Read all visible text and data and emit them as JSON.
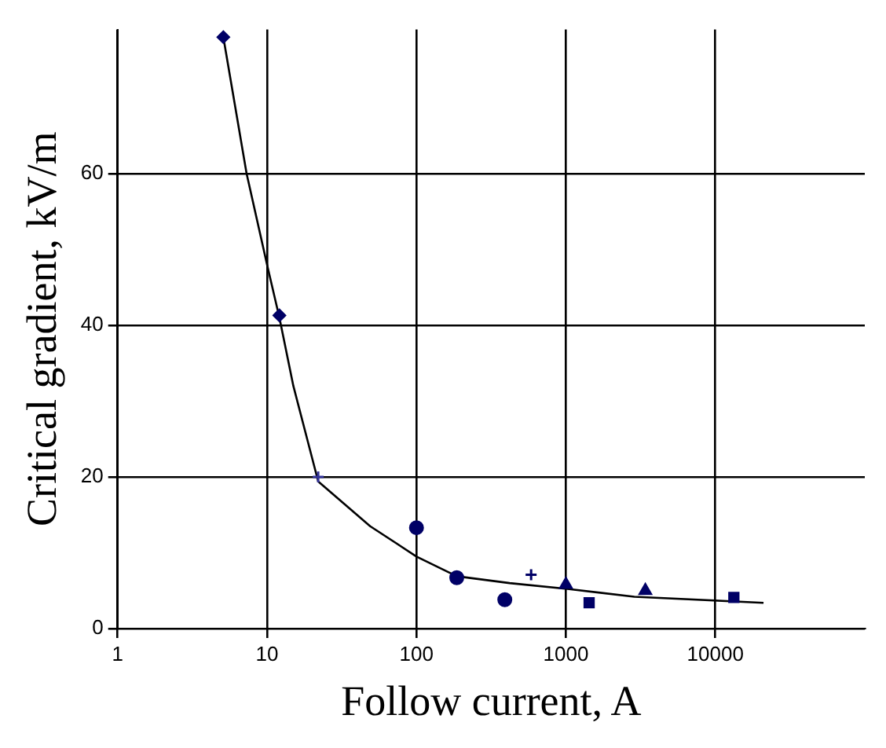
{
  "chart_data": {
    "type": "scatter",
    "xlabel": "Follow current, A",
    "ylabel": "Critical gradient, kV/m",
    "log": "x",
    "xlim": [
      1,
      100000
    ],
    "xticks": [
      1,
      10,
      100,
      1000,
      10000
    ],
    "ylim": [
      0,
      79
    ],
    "yticks": [
      0,
      20,
      40,
      60
    ],
    "grid": true,
    "legend": false,
    "series": [
      {
        "marker": "diamond",
        "color": "#000066",
        "x": [
          5.1,
          12.1
        ],
        "values": [
          78,
          41.3
        ]
      },
      {
        "marker": "cross",
        "color": "#333399",
        "x": [
          22
        ],
        "values": [
          20
        ]
      },
      {
        "marker": "circle",
        "color": "#000066",
        "x": [
          100,
          186,
          390
        ],
        "values": [
          13.3,
          6.7,
          3.8
        ]
      },
      {
        "marker": "cross",
        "color": "#000066",
        "x": [
          585
        ],
        "values": [
          7.1
        ]
      },
      {
        "marker": "triangle",
        "color": "#000066",
        "x": [
          1000,
          3400
        ],
        "values": [
          5.8,
          5.0
        ]
      },
      {
        "marker": "square",
        "color": "#000066",
        "x": [
          1430
        ],
        "values": [
          3.4
        ]
      },
      {
        "marker": "square",
        "color": "#000066",
        "x": [
          13300
        ],
        "values": [
          4.1
        ]
      },
      {
        "type": "line",
        "marker": "none",
        "color": "#000000",
        "x": [
          5.1,
          7.3,
          10,
          12.1,
          15,
          22,
          49,
          100,
          186,
          420,
          1050,
          2870,
          21000
        ],
        "values": [
          78,
          60,
          48,
          41,
          32,
          19.4,
          13.5,
          9.5,
          6.9,
          6.0,
          5.2,
          4.2,
          3.4
        ]
      }
    ]
  }
}
